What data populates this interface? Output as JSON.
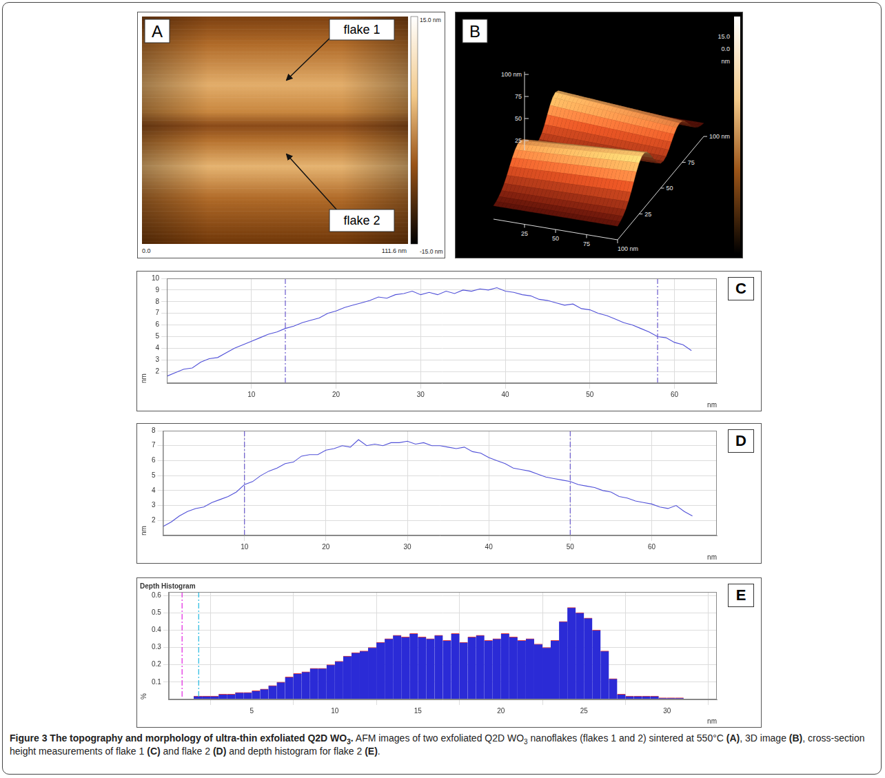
{
  "figure": {
    "panel_a": {
      "letter": "A",
      "labels": [
        "flake 1",
        "flake 2"
      ],
      "x_start": "0.0",
      "x_end": "111.6 nm",
      "scale_max": "15.0 nm",
      "scale_min": "-15.0 nm"
    },
    "panel_b": {
      "letter": "B",
      "left_axis": [
        "100 nm",
        "75",
        "50",
        "25"
      ],
      "bottom_axis": [
        "25",
        "50",
        "75",
        "100 nm"
      ],
      "right_axis": [
        "25",
        "50",
        "75",
        "100 nm"
      ],
      "scale_labels": [
        "15.0",
        "0.0",
        "nm"
      ]
    },
    "caption": [
      {
        "text": "Figure 3 The topography and morphology of ultra-thin exfoliated Q2D WO",
        "bold": true
      },
      {
        "text": "3",
        "bold": true,
        "sub": true
      },
      {
        "text": ".",
        "bold": true
      },
      {
        "text": " AFM images of two exfoliated Q2D WO"
      },
      {
        "text": "3",
        "sub": true
      },
      {
        "text": " nanoflakes (flakes 1 and 2) sintered at 550°C "
      },
      {
        "text": "(A)",
        "bold": true
      },
      {
        "text": ", 3D image "
      },
      {
        "text": "(B)",
        "bold": true
      },
      {
        "text": ", cross-section height measurements of flake 1 "
      },
      {
        "text": "(C)",
        "bold": true
      },
      {
        "text": " and flake 2 "
      },
      {
        "text": "(D)",
        "bold": true
      },
      {
        "text": " and depth histogram for flake 2 "
      },
      {
        "text": "(E)",
        "bold": true
      },
      {
        "text": "."
      }
    ]
  },
  "chart_data": [
    {
      "type": "line",
      "letter": "C",
      "x": [
        0,
        1,
        2,
        3,
        4,
        5,
        6,
        7,
        8,
        9,
        10,
        11,
        12,
        13,
        14,
        15,
        16,
        17,
        18,
        19,
        20,
        21,
        22,
        23,
        24,
        25,
        26,
        27,
        28,
        29,
        30,
        31,
        32,
        33,
        34,
        35,
        36,
        37,
        38,
        39,
        40,
        41,
        42,
        43,
        44,
        45,
        46,
        47,
        48,
        49,
        50,
        51,
        52,
        53,
        54,
        55,
        56,
        57,
        58,
        59,
        60,
        61,
        62
      ],
      "values": [
        1.6,
        1.9,
        2.2,
        2.3,
        2.8,
        3.1,
        3.2,
        3.6,
        4.0,
        4.3,
        4.6,
        4.9,
        5.2,
        5.4,
        5.7,
        5.9,
        6.2,
        6.4,
        6.6,
        7.0,
        7.2,
        7.5,
        7.7,
        7.9,
        8.1,
        8.4,
        8.3,
        8.6,
        8.7,
        8.9,
        8.6,
        8.8,
        8.6,
        8.9,
        8.7,
        9.0,
        8.9,
        9.1,
        9.0,
        9.2,
        8.9,
        8.8,
        8.6,
        8.5,
        8.2,
        8.1,
        7.9,
        7.7,
        7.8,
        7.4,
        7.3,
        7.0,
        6.8,
        6.5,
        6.2,
        6.0,
        5.7,
        5.4,
        5.0,
        4.9,
        4.5,
        4.3,
        3.8
      ],
      "color": "#5050d8",
      "xlim": [
        0,
        65
      ],
      "xticks": [
        10,
        20,
        30,
        40,
        50,
        60
      ],
      "ylim": [
        1,
        10
      ],
      "yticks": [
        2,
        3,
        4,
        5,
        6,
        7,
        8,
        9,
        10
      ],
      "x_label": "nm",
      "y_label": "nm",
      "cursor_x": [
        14,
        58
      ],
      "cursor_colors": [
        "#6a5acd",
        "#6a5acd"
      ],
      "grid": true
    },
    {
      "type": "line",
      "letter": "D",
      "x": [
        0,
        1,
        2,
        3,
        4,
        5,
        6,
        7,
        8,
        9,
        10,
        11,
        12,
        13,
        14,
        15,
        16,
        17,
        18,
        19,
        20,
        21,
        22,
        23,
        24,
        25,
        26,
        27,
        28,
        29,
        30,
        31,
        32,
        33,
        34,
        35,
        36,
        37,
        38,
        39,
        40,
        41,
        42,
        43,
        44,
        45,
        46,
        47,
        48,
        49,
        50,
        51,
        52,
        53,
        54,
        55,
        56,
        57,
        58,
        59,
        60,
        61,
        62,
        63,
        64,
        65
      ],
      "values": [
        1.6,
        1.9,
        2.3,
        2.6,
        2.8,
        2.9,
        3.2,
        3.4,
        3.6,
        3.9,
        4.4,
        4.6,
        5.0,
        5.3,
        5.5,
        5.8,
        5.9,
        6.3,
        6.4,
        6.4,
        6.7,
        6.8,
        7.0,
        6.9,
        7.4,
        7.0,
        7.1,
        7.0,
        7.2,
        7.2,
        7.3,
        7.1,
        7.2,
        7.0,
        7.0,
        6.9,
        6.8,
        6.9,
        6.6,
        6.5,
        6.2,
        6.0,
        5.8,
        5.5,
        5.4,
        5.3,
        5.1,
        4.9,
        4.8,
        4.7,
        4.6,
        4.4,
        4.3,
        4.2,
        4.0,
        3.9,
        3.6,
        3.5,
        3.3,
        3.2,
        3.1,
        2.9,
        2.8,
        3.0,
        2.6,
        2.3
      ],
      "color": "#5050d8",
      "xlim": [
        0,
        68
      ],
      "xticks": [
        10,
        20,
        30,
        40,
        50,
        60
      ],
      "ylim": [
        1,
        8
      ],
      "yticks": [
        2,
        3,
        4,
        5,
        6,
        7,
        8
      ],
      "x_label": "nm",
      "y_label": "nm",
      "cursor_x": [
        10,
        50
      ],
      "cursor_colors": [
        "#6a5acd",
        "#6a5acd"
      ],
      "grid": true
    },
    {
      "type": "histogram",
      "letter": "E",
      "title": "Depth Histogram",
      "bins": [
        0,
        0.5,
        1,
        1.5,
        2,
        2.5,
        3,
        3.5,
        4,
        4.5,
        5,
        5.5,
        6,
        6.5,
        7,
        7.5,
        8,
        8.5,
        9,
        9.5,
        10,
        10.5,
        11,
        11.5,
        12,
        12.5,
        13,
        13.5,
        14,
        14.5,
        15,
        15.5,
        16,
        16.5,
        17,
        17.5,
        18,
        18.5,
        19,
        19.5,
        20,
        20.5,
        21,
        21.5,
        22,
        22.5,
        23,
        23.5,
        24,
        24.5,
        25,
        25.5,
        26,
        26.5,
        27,
        27.5,
        28,
        28.5,
        29,
        29.5,
        30,
        30.5,
        31
      ],
      "values": [
        0,
        0,
        0,
        0.02,
        0.02,
        0.02,
        0.03,
        0.03,
        0.04,
        0.04,
        0.05,
        0.06,
        0.08,
        0.1,
        0.13,
        0.15,
        0.16,
        0.18,
        0.18,
        0.2,
        0.22,
        0.25,
        0.27,
        0.28,
        0.3,
        0.33,
        0.35,
        0.37,
        0.36,
        0.38,
        0.36,
        0.35,
        0.37,
        0.34,
        0.38,
        0.33,
        0.36,
        0.37,
        0.34,
        0.35,
        0.38,
        0.36,
        0.34,
        0.35,
        0.32,
        0.3,
        0.34,
        0.45,
        0.53,
        0.5,
        0.47,
        0.4,
        0.28,
        0.12,
        0.03,
        0.02,
        0.02,
        0.02,
        0.02,
        0.01,
        0.01,
        0.01
      ],
      "color": "#2b2bd6",
      "xlim": [
        0,
        33
      ],
      "xticks": [
        5,
        10,
        15,
        20,
        25,
        30
      ],
      "ylim": [
        0,
        0.62
      ],
      "yticks": [
        0.1,
        0.2,
        0.3,
        0.4,
        0.5,
        0.6
      ],
      "x_label": "nm",
      "y_label": "%",
      "cursor_x": [
        0.8,
        1.8
      ],
      "cursor_colors": [
        "#e020e0",
        "#20b8e0"
      ],
      "grid": true
    }
  ]
}
